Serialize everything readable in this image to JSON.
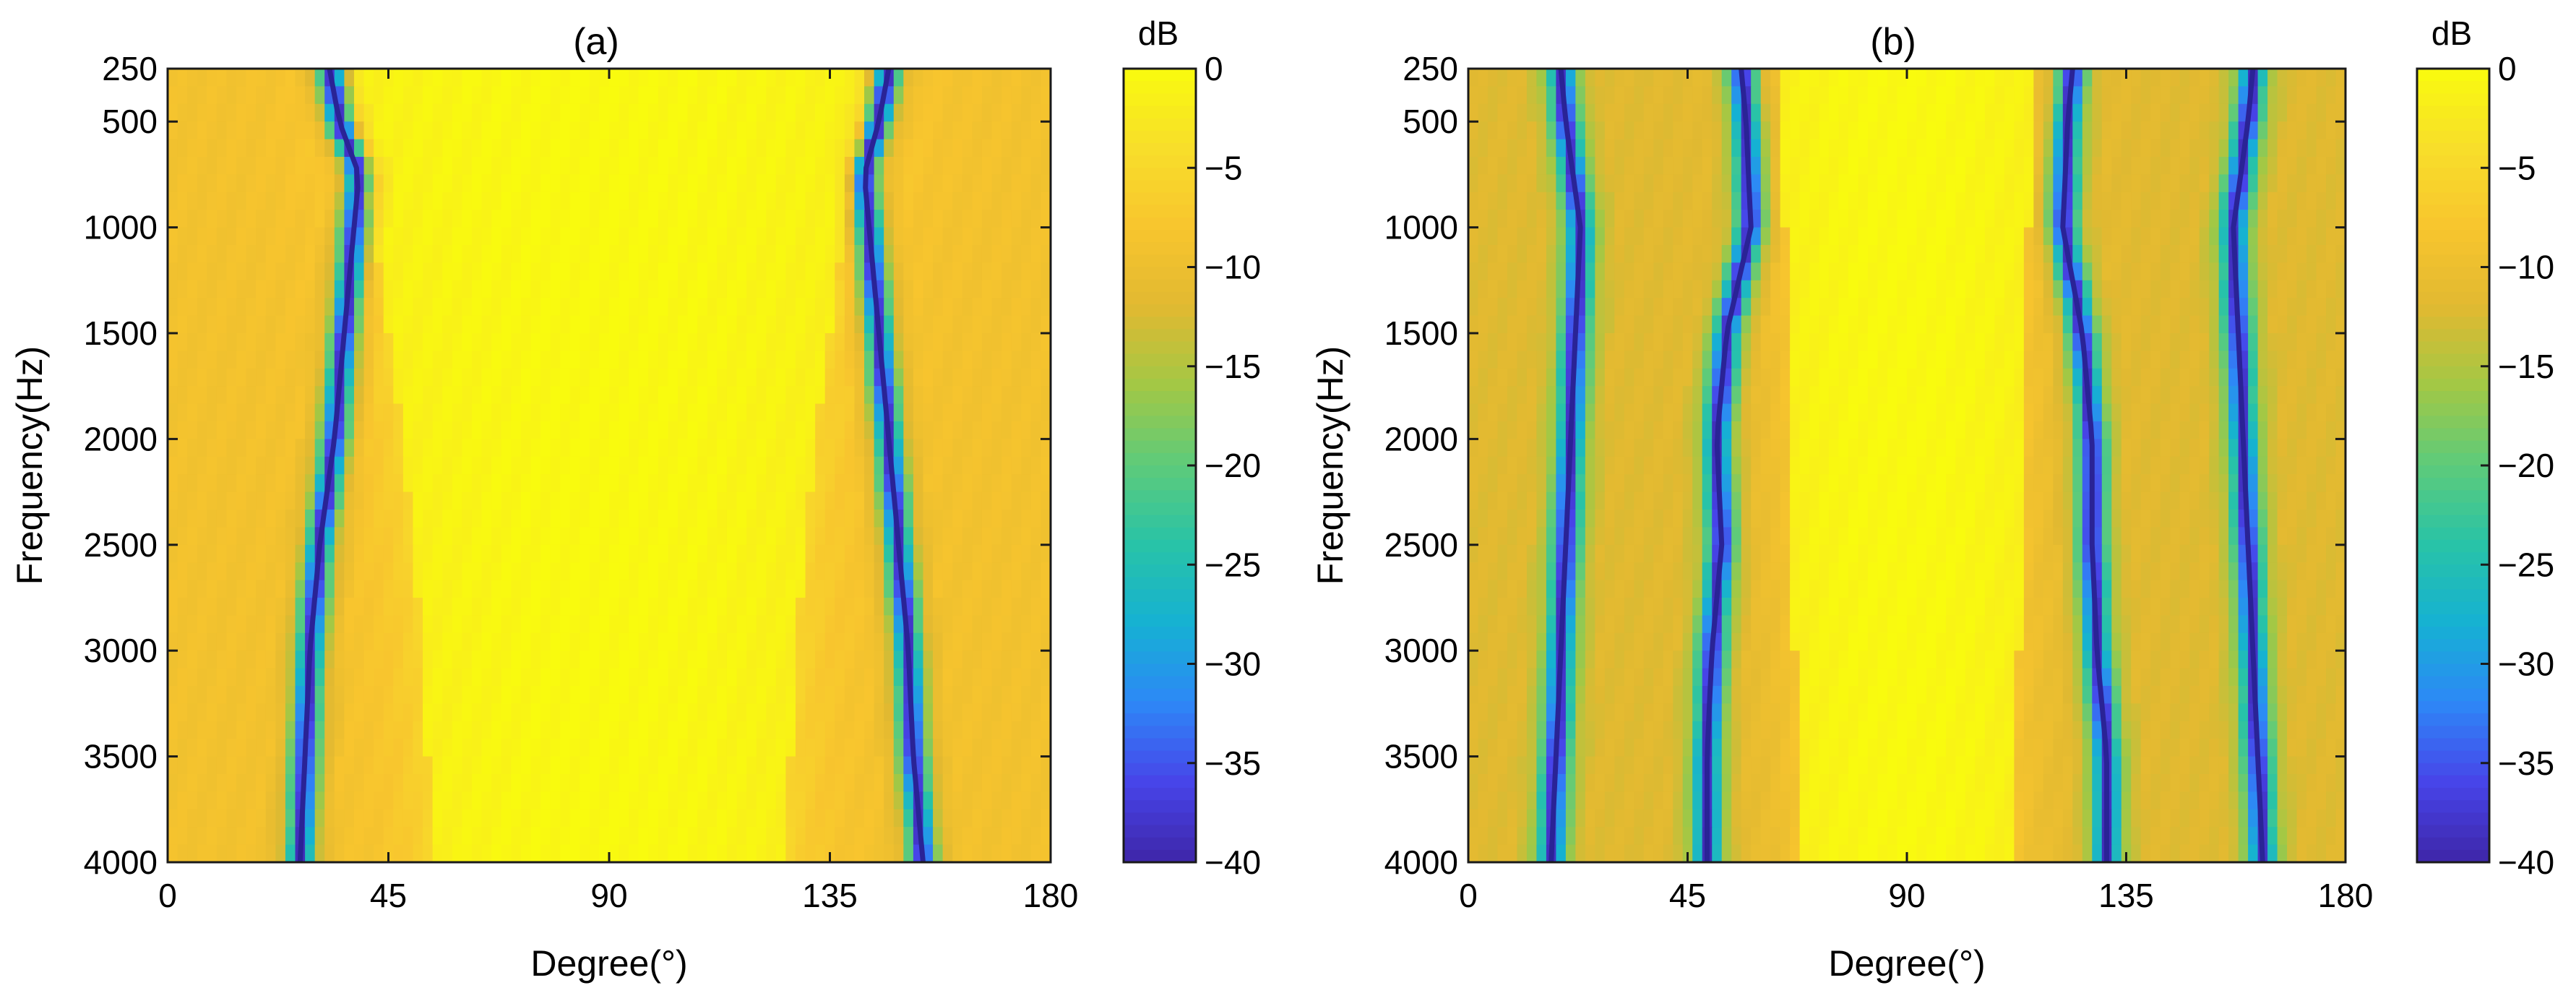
{
  "chart_data": [
    {
      "type": "heatmap",
      "title": "(a)",
      "xlabel": "Degree(°)",
      "ylabel": "Frequency(Hz)",
      "x_ticks": [
        0,
        45,
        90,
        135,
        180
      ],
      "y_ticks": [
        250,
        500,
        1000,
        1500,
        2000,
        2500,
        3000,
        3500,
        4000
      ],
      "xlim": [
        0,
        180
      ],
      "ylim": [
        250,
        4000
      ],
      "y_reversed": true,
      "colorbar": {
        "label": "dB",
        "ticks": [
          0,
          -5,
          -10,
          -15,
          -20,
          -25,
          -30,
          -35,
          -40
        ],
        "range": [
          -40,
          0
        ],
        "colormap": "parula"
      },
      "nulls": [
        {
          "name": "null-left",
          "points": [
            [
              250,
              33.0
            ],
            [
              500,
              35.0
            ],
            [
              750,
              39.0
            ],
            [
              1000,
              38.0
            ],
            [
              1500,
              36.0
            ],
            [
              2000,
              34.0
            ],
            [
              2500,
              31.0
            ],
            [
              3000,
              29.0
            ],
            [
              3500,
              28.0
            ],
            [
              4000,
              27.0
            ]
          ]
        },
        {
          "name": "null-right",
          "points": [
            [
              250,
              147.0
            ],
            [
              500,
              145.0
            ],
            [
              750,
              142.0
            ],
            [
              1000,
              143.0
            ],
            [
              1500,
              145.0
            ],
            [
              2000,
              147.0
            ],
            [
              2500,
              149.0
            ],
            [
              3000,
              151.0
            ],
            [
              3500,
              152.0
            ],
            [
              4000,
              154.0
            ]
          ]
        }
      ],
      "main_lobe": {
        "center": 90,
        "half_width": [
          [
            250,
            52
          ],
          [
            500,
            52
          ],
          [
            750,
            52
          ],
          [
            1000,
            48
          ],
          [
            1500,
            45
          ],
          [
            2000,
            42
          ],
          [
            2500,
            40
          ],
          [
            3000,
            38
          ],
          [
            3500,
            37
          ],
          [
            4000,
            36
          ]
        ]
      },
      "background_db": -9
    },
    {
      "type": "heatmap",
      "title": "(b)",
      "xlabel": "Degree(°)",
      "ylabel": "Frequency(Hz)",
      "x_ticks": [
        0,
        45,
        90,
        135,
        180
      ],
      "y_ticks": [
        250,
        500,
        1000,
        1500,
        2000,
        2500,
        3000,
        3500,
        4000
      ],
      "xlim": [
        0,
        180
      ],
      "ylim": [
        250,
        4000
      ],
      "y_reversed": true,
      "colorbar": {
        "label": "dB",
        "ticks": [
          0,
          -5,
          -10,
          -15,
          -20,
          -25,
          -30,
          -35,
          -40
        ],
        "range": [
          -40,
          0
        ],
        "colormap": "parula"
      },
      "nulls": [
        {
          "name": "null-1",
          "points": [
            [
              250,
              19.0
            ],
            [
              500,
              20.0
            ],
            [
              1000,
              23.0
            ],
            [
              1500,
              22.0
            ],
            [
              2000,
              21.0
            ],
            [
              2500,
              20.0
            ],
            [
              3000,
              19.0
            ],
            [
              3500,
              18.0
            ],
            [
              4000,
              17.0
            ]
          ]
        },
        {
          "name": "null-2",
          "points": [
            [
              250,
              56.0
            ],
            [
              500,
              57.0
            ],
            [
              1000,
              58.0
            ],
            [
              1500,
              53.0
            ],
            [
              2000,
              51.0
            ],
            [
              2500,
              52.0
            ],
            [
              3000,
              50.0
            ],
            [
              3500,
              49.0
            ],
            [
              4000,
              49.0
            ]
          ]
        },
        {
          "name": "null-3",
          "points": [
            [
              250,
              124.0
            ],
            [
              500,
              123.0
            ],
            [
              1000,
              122.0
            ],
            [
              1500,
              126.0
            ],
            [
              2000,
              128.0
            ],
            [
              2500,
              128.0
            ],
            [
              3000,
              129.0
            ],
            [
              3500,
              131.0
            ],
            [
              4000,
              131.0
            ]
          ]
        },
        {
          "name": "null-4",
          "points": [
            [
              250,
              161.0
            ],
            [
              500,
              160.0
            ],
            [
              1000,
              157.0
            ],
            [
              1500,
              158.0
            ],
            [
              2000,
              159.0
            ],
            [
              2500,
              160.0
            ],
            [
              3000,
              161.0
            ],
            [
              3500,
              162.0
            ],
            [
              4000,
              163.0
            ]
          ]
        }
      ],
      "main_lobe": {
        "center": 90,
        "half_width": [
          [
            250,
            26
          ],
          [
            1000,
            25
          ],
          [
            4000,
            22
          ]
        ]
      },
      "background_db": -12
    }
  ],
  "colors": {
    "parula": [
      "#3e26a8",
      "#4744e9",
      "#2e87f7",
      "#15b1d3",
      "#28c3a7",
      "#5dcb7b",
      "#a2c845",
      "#e1b931",
      "#f8c52e",
      "#f8de2a",
      "#f9fb0e"
    ]
  }
}
